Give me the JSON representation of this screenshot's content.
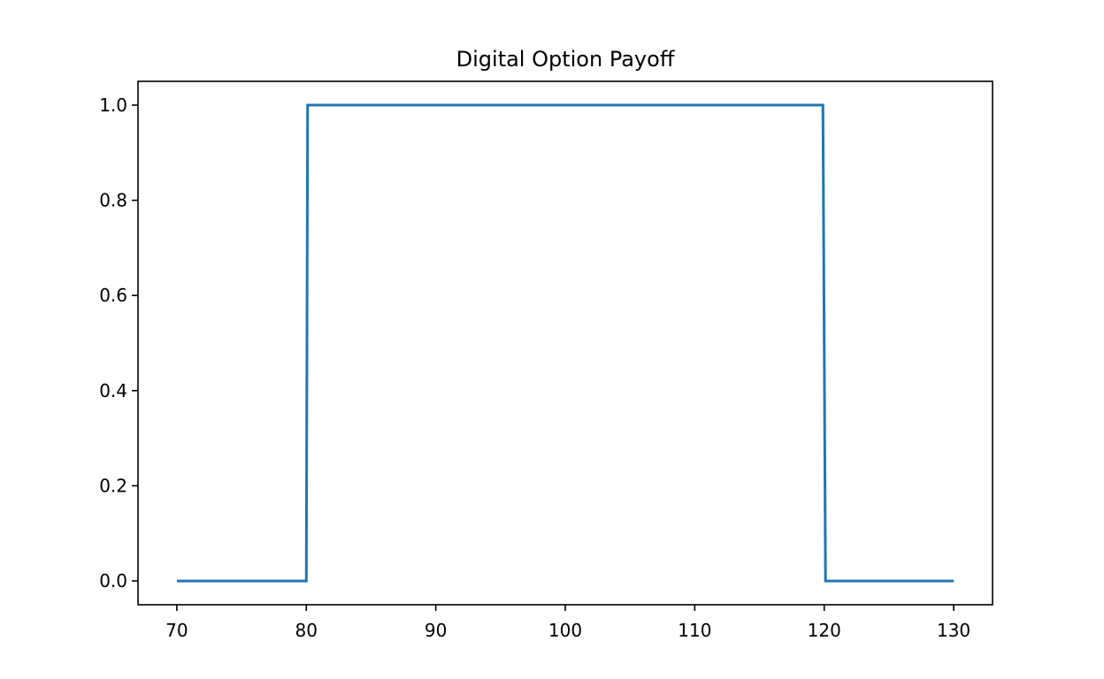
{
  "chart_data": {
    "type": "line",
    "title": "Digital Option Payoff",
    "xlabel": "",
    "ylabel": "",
    "xlim": [
      67,
      133
    ],
    "ylim": [
      -0.05,
      1.05
    ],
    "x_ticks": [
      70,
      80,
      90,
      100,
      110,
      120,
      130
    ],
    "y_ticks": [
      0.0,
      0.2,
      0.4,
      0.6,
      0.8,
      1.0
    ],
    "x_tick_labels": [
      "70",
      "80",
      "90",
      "100",
      "110",
      "120",
      "130"
    ],
    "y_tick_labels": [
      "0.0",
      "0.2",
      "0.4",
      "0.6",
      "0.8",
      "1.0"
    ],
    "grid": false,
    "legend": "none",
    "series": [
      {
        "color": "#1f77b4",
        "x": [
          70,
          80,
          80.1,
          119.9,
          120.1,
          130
        ],
        "y": [
          0,
          0,
          1,
          1,
          0,
          0
        ]
      }
    ]
  }
}
